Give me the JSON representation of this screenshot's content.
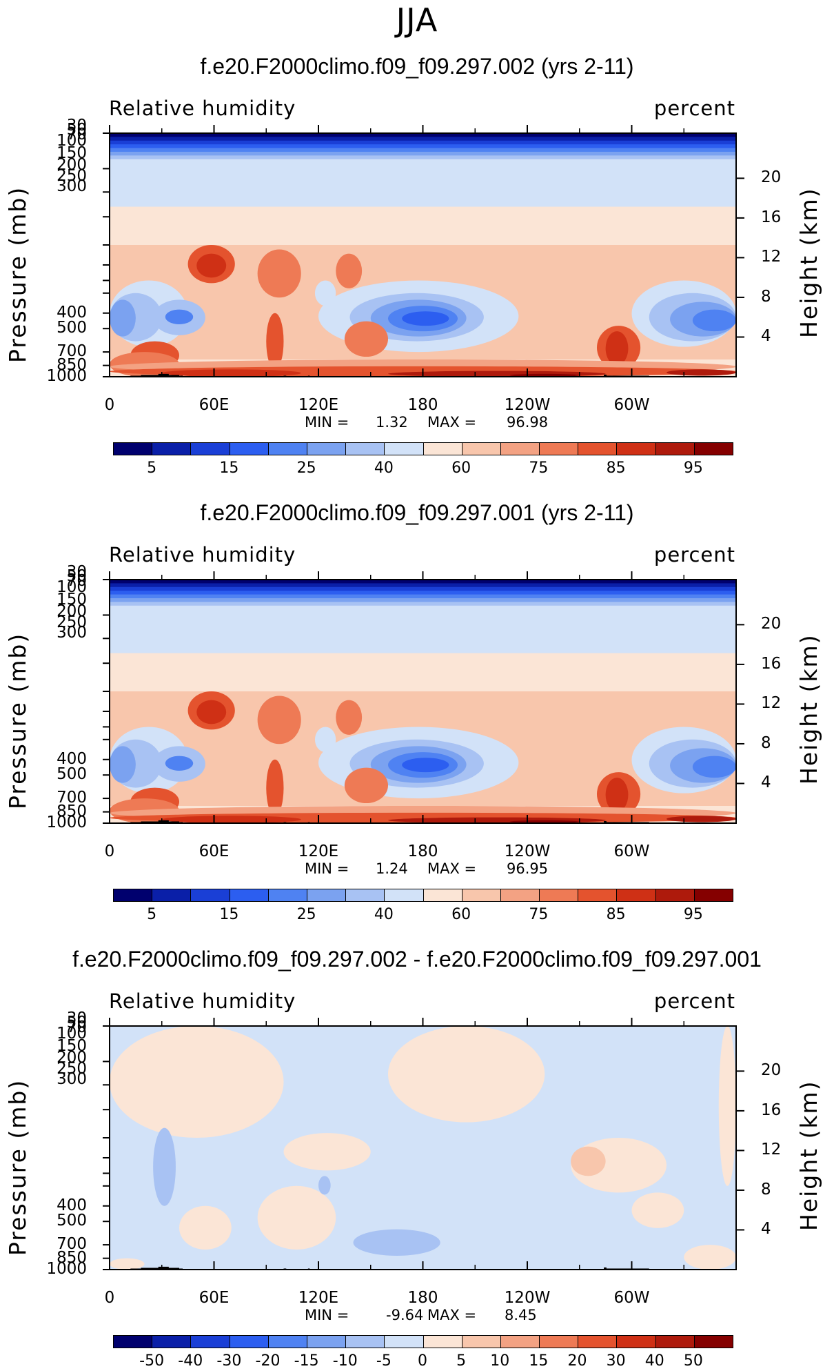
{
  "page_title": "JJA",
  "chart_data": [
    {
      "type": "heatmap",
      "title": "f.e20.F2000climo.f09_f09.297.002 (yrs 2-11)",
      "left_label": "Relative humidity",
      "right_label": "percent",
      "ylabel": "Pressure (mb)",
      "ylabel_right": "Height (km)",
      "pressure_ticks": [
        "30",
        "50",
        "70",
        "100",
        "150",
        "200",
        "250",
        "300",
        "400",
        "500",
        "700",
        "850",
        "1000"
      ],
      "height_ticks": [
        "20",
        "16",
        "12",
        "8",
        "4"
      ],
      "x_ticks": [
        "0",
        "60E",
        "120E",
        "180",
        "120W",
        "60W"
      ],
      "min_label": "MIN =",
      "min_value": "1.32",
      "max_label": "MAX =",
      "max_value": "96.98",
      "colorbar_labels": [
        "5",
        "15",
        "25",
        "40",
        "60",
        "75",
        "85",
        "95"
      ]
    },
    {
      "type": "heatmap",
      "title": "f.e20.F2000climo.f09_f09.297.001 (yrs 2-11)",
      "left_label": "Relative humidity",
      "right_label": "percent",
      "ylabel": "Pressure (mb)",
      "ylabel_right": "Height (km)",
      "pressure_ticks": [
        "30",
        "50",
        "70",
        "100",
        "150",
        "200",
        "250",
        "300",
        "400",
        "500",
        "700",
        "850",
        "1000"
      ],
      "height_ticks": [
        "20",
        "16",
        "12",
        "8",
        "4"
      ],
      "x_ticks": [
        "0",
        "60E",
        "120E",
        "180",
        "120W",
        "60W"
      ],
      "min_label": "MIN =",
      "min_value": "1.24",
      "max_label": "MAX =",
      "max_value": "96.95",
      "colorbar_labels": [
        "5",
        "15",
        "25",
        "40",
        "60",
        "75",
        "85",
        "95"
      ]
    },
    {
      "type": "heatmap",
      "title": "f.e20.F2000climo.f09_f09.297.002 - f.e20.F2000climo.f09_f09.297.001",
      "left_label": "Relative humidity",
      "right_label": "percent",
      "ylabel": "Pressure (mb)",
      "ylabel_right": "Height (km)",
      "pressure_ticks": [
        "30",
        "50",
        "70",
        "100",
        "150",
        "200",
        "250",
        "300",
        "400",
        "500",
        "700",
        "850",
        "1000"
      ],
      "height_ticks": [
        "20",
        "16",
        "12",
        "8",
        "4"
      ],
      "x_ticks": [
        "0",
        "60E",
        "120E",
        "180",
        "120W",
        "60W"
      ],
      "min_label": "MIN =",
      "min_value": "-9.64",
      "max_label": "MAX =",
      "max_value": "8.45",
      "colorbar_labels": [
        "-50",
        "-40",
        "-30",
        "-20",
        "-15",
        "-10",
        "-5",
        "0",
        "5",
        "10",
        "15",
        "20",
        "30",
        "40",
        "50"
      ]
    }
  ],
  "colors": {
    "colormap": [
      "#00006e",
      "#0a1fa8",
      "#1a3fd6",
      "#2c5ef0",
      "#4f82f2",
      "#7ba2f0",
      "#a8c2f3",
      "#d2e2f8",
      "#fbe5d6",
      "#f8c6ac",
      "#f3a283",
      "#ee7a55",
      "#e4532e",
      "#cf3015",
      "#ae1a0c",
      "#850000"
    ],
    "diff_colormap": [
      "#00006e",
      "#0a1fa8",
      "#1a3fd6",
      "#2c5ef0",
      "#4f82f2",
      "#7ba2f0",
      "#a8c2f3",
      "#d2e2f8",
      "#fbe5d6",
      "#f8c6ac",
      "#f3a283",
      "#ee7a55",
      "#e4532e",
      "#cf3015",
      "#ae1a0c",
      "#850000"
    ],
    "topography": "#000000"
  }
}
